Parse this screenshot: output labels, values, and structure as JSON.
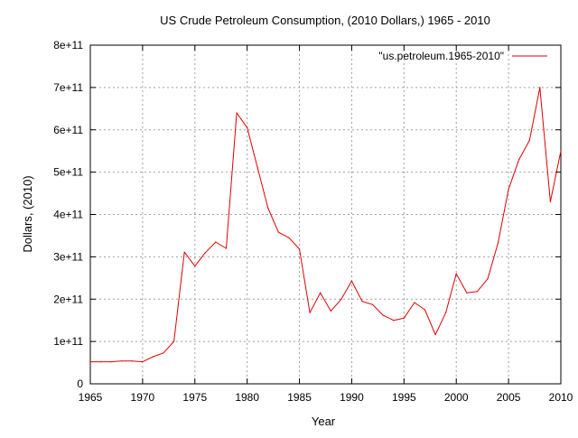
{
  "chart_data": {
    "type": "line",
    "title": "US Crude Petroleum Consumption, (2010 Dollars,) 1965 - 2010",
    "xlabel": "Year",
    "ylabel": "Dollars, (2010)",
    "xlim": [
      1965,
      2010
    ],
    "ylim": [
      0,
      800000000000
    ],
    "grid": true,
    "legend_position": "top-right",
    "x_ticks": [
      {
        "value": 1965,
        "label": "1965"
      },
      {
        "value": 1970,
        "label": "1970"
      },
      {
        "value": 1975,
        "label": "1975"
      },
      {
        "value": 1980,
        "label": "1980"
      },
      {
        "value": 1985,
        "label": "1985"
      },
      {
        "value": 1990,
        "label": "1990"
      },
      {
        "value": 1995,
        "label": "1995"
      },
      {
        "value": 2000,
        "label": "2000"
      },
      {
        "value": 2005,
        "label": "2005"
      },
      {
        "value": 2010,
        "label": "2010"
      }
    ],
    "y_ticks": [
      {
        "value": 0,
        "label": "0"
      },
      {
        "value": 100000000000,
        "label": "1e+11"
      },
      {
        "value": 200000000000,
        "label": "2e+11"
      },
      {
        "value": 300000000000,
        "label": "3e+11"
      },
      {
        "value": 400000000000,
        "label": "4e+11"
      },
      {
        "value": 500000000000,
        "label": "5e+11"
      },
      {
        "value": 600000000000,
        "label": "6e+11"
      },
      {
        "value": 700000000000,
        "label": "7e+11"
      },
      {
        "value": 800000000000,
        "label": "8e+11"
      }
    ],
    "series": [
      {
        "name": "\"us.petroleum.1965-2010\"",
        "color": "#e00000",
        "x": [
          1965,
          1966,
          1967,
          1968,
          1969,
          1970,
          1971,
          1972,
          1973,
          1974,
          1975,
          1976,
          1977,
          1978,
          1979,
          1980,
          1981,
          1982,
          1983,
          1984,
          1985,
          1986,
          1987,
          1988,
          1989,
          1990,
          1991,
          1992,
          1993,
          1994,
          1995,
          1996,
          1997,
          1998,
          1999,
          2000,
          2001,
          2002,
          2003,
          2004,
          2005,
          2006,
          2007,
          2008,
          2009,
          2010
        ],
        "values": [
          52000000000,
          52000000000,
          52000000000,
          54000000000,
          54000000000,
          52000000000,
          64000000000,
          73000000000,
          100000000000,
          311000000000,
          278000000000,
          310000000000,
          335000000000,
          320000000000,
          640000000000,
          605000000000,
          510000000000,
          415000000000,
          358000000000,
          345000000000,
          318000000000,
          168000000000,
          215000000000,
          172000000000,
          200000000000,
          243000000000,
          195000000000,
          187000000000,
          162000000000,
          150000000000,
          155000000000,
          192000000000,
          175000000000,
          116000000000,
          168000000000,
          260000000000,
          215000000000,
          218000000000,
          248000000000,
          333000000000,
          460000000000,
          530000000000,
          575000000000,
          700000000000,
          430000000000,
          550000000000
        ]
      }
    ]
  }
}
